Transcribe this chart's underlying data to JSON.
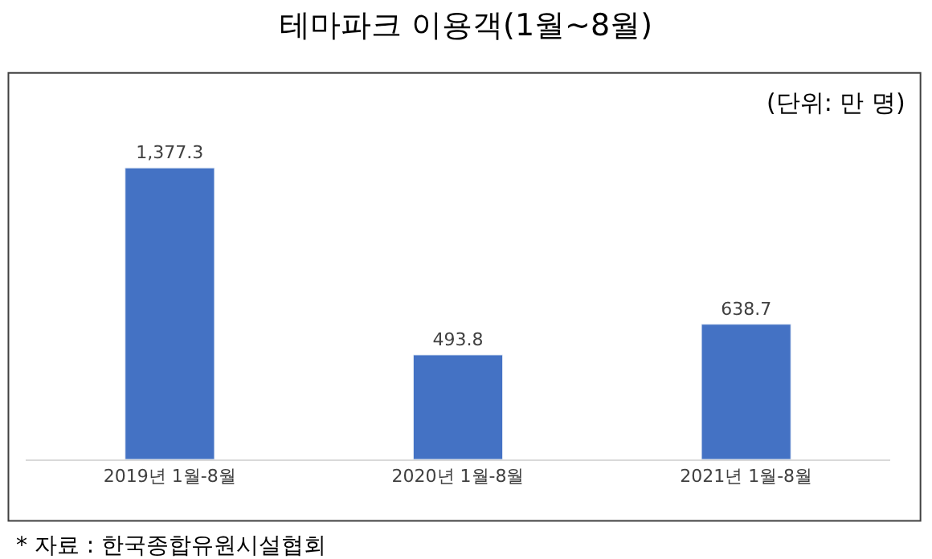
{
  "chart_data": {
    "type": "bar",
    "title": "테마파크 이용객(1월~8월)",
    "categories": [
      "2019년 1월-8월",
      "2020년 1월-8월",
      "2021년 1월-8월"
    ],
    "series": [
      {
        "color": "#4472c4",
        "values": [
          1377.3,
          493.8,
          638.7
        ],
        "value_labels": [
          "1,377.3",
          "493.8",
          "638.7"
        ]
      }
    ],
    "annotations": [
      "(단위: 만 명)",
      "* 자료 : 한국종합유원시설협회"
    ]
  }
}
